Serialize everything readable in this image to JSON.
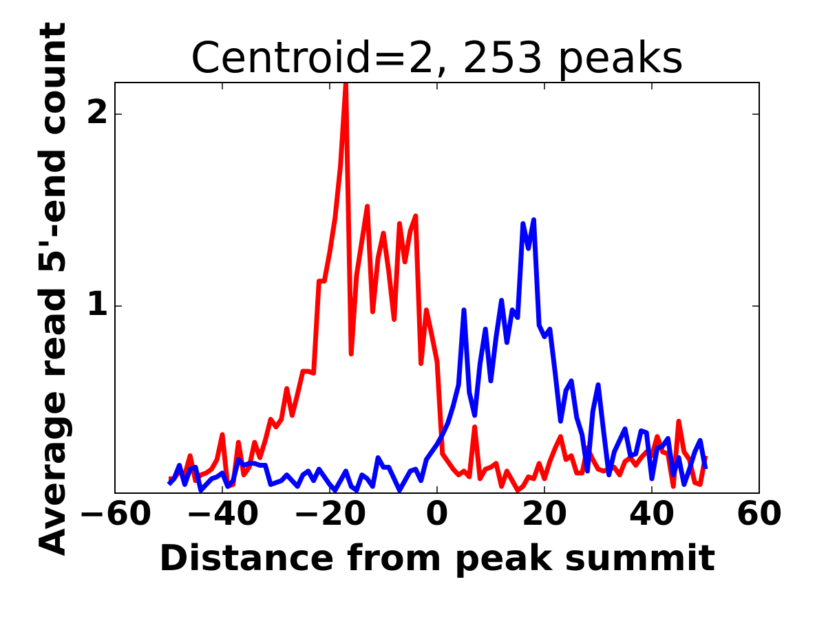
{
  "chart_data": {
    "type": "line",
    "title": "Centroid=2, 253 peaks",
    "xlabel": "Distance from peak summit",
    "ylabel": "Average read 5'-end count",
    "x": [
      -50,
      -49,
      -48,
      -47,
      -46,
      -45,
      -44,
      -43,
      -42,
      -41,
      -40,
      -39,
      -38,
      -37,
      -36,
      -35,
      -34,
      -33,
      -32,
      -31,
      -30,
      -29,
      -28,
      -27,
      -26,
      -25,
      -24,
      -23,
      -22,
      -21,
      -20,
      -19,
      -18,
      -17,
      -16,
      -15,
      -14,
      -13,
      -12,
      -11,
      -10,
      -9,
      -8,
      -7,
      -6,
      -5,
      -4,
      -3,
      -2,
      -1,
      0,
      1,
      2,
      3,
      4,
      5,
      6,
      7,
      8,
      9,
      10,
      11,
      12,
      13,
      14,
      15,
      16,
      17,
      18,
      19,
      20,
      21,
      22,
      23,
      24,
      25,
      26,
      27,
      28,
      29,
      30,
      31,
      32,
      33,
      34,
      35,
      36,
      37,
      38,
      39,
      40,
      41,
      42,
      43,
      44,
      45,
      46,
      47,
      48,
      49,
      50
    ],
    "series": [
      {
        "name": "red",
        "color": "#ff0000",
        "values": [
          0.1,
          0.1,
          0.14,
          0.12,
          0.22,
          0.09,
          0.12,
          0.13,
          0.15,
          0.2,
          0.33,
          0.06,
          0.07,
          0.29,
          0.12,
          0.16,
          0.29,
          0.21,
          0.3,
          0.41,
          0.37,
          0.41,
          0.57,
          0.43,
          0.54,
          0.66,
          0.66,
          0.65,
          1.13,
          1.13,
          1.28,
          1.46,
          1.73,
          2.16,
          0.75,
          1.16,
          1.34,
          1.52,
          0.97,
          1.25,
          1.38,
          1.18,
          0.93,
          1.43,
          1.23,
          1.39,
          1.47,
          0.7,
          0.98,
          0.85,
          0.71,
          0.23,
          0.19,
          0.15,
          0.12,
          0.14,
          0.11,
          0.37,
          0.1,
          0.15,
          0.16,
          0.18,
          0.06,
          0.14,
          0.09,
          0.04,
          0.06,
          0.11,
          0.1,
          0.18,
          0.1,
          0.19,
          0.26,
          0.32,
          0.2,
          0.22,
          0.13,
          0.13,
          0.26,
          0.2,
          0.15,
          0.14,
          0.15,
          0.16,
          0.12,
          0.19,
          0.21,
          0.17,
          0.21,
          0.24,
          0.22,
          0.32,
          0.24,
          0.23,
          0.06,
          0.4,
          0.24,
          0.2,
          0.08,
          0.07,
          0.22
        ]
      },
      {
        "name": "blue",
        "color": "#0000ff",
        "values": [
          0.07,
          0.1,
          0.17,
          0.07,
          0.15,
          0.16,
          0.04,
          0.07,
          0.1,
          0.11,
          0.13,
          0.06,
          0.09,
          0.2,
          0.17,
          0.18,
          0.18,
          0.17,
          0.17,
          0.07,
          0.08,
          0.09,
          0.12,
          0.09,
          0.06,
          0.12,
          0.14,
          0.09,
          0.15,
          0.11,
          0.07,
          0.04,
          0.09,
          0.14,
          0.06,
          0.04,
          0.12,
          0.1,
          0.06,
          0.21,
          0.16,
          0.16,
          0.1,
          0.04,
          0.09,
          0.14,
          0.15,
          0.09,
          0.2,
          0.24,
          0.28,
          0.33,
          0.39,
          0.48,
          0.59,
          0.98,
          0.55,
          0.43,
          0.7,
          0.88,
          0.61,
          0.84,
          1.03,
          0.81,
          0.98,
          0.94,
          1.43,
          1.3,
          1.45,
          0.9,
          0.84,
          0.88,
          0.65,
          0.4,
          0.56,
          0.61,
          0.42,
          0.33,
          0.14,
          0.45,
          0.59,
          0.35,
          0.12,
          0.24,
          0.3,
          0.36,
          0.22,
          0.23,
          0.35,
          0.34,
          0.1,
          0.26,
          0.27,
          0.31,
          0.12,
          0.21,
          0.07,
          0.15,
          0.24,
          0.3,
          0.15
        ]
      }
    ],
    "xlim": [
      -60,
      60
    ],
    "xticks": [
      {
        "value": -60,
        "label": "−60"
      },
      {
        "value": -40,
        "label": "−40"
      },
      {
        "value": -20,
        "label": "−20"
      },
      0,
      20,
      40,
      60
    ],
    "ylim": [
      0.025,
      2.165
    ],
    "yticks": [
      1,
      2
    ]
  }
}
